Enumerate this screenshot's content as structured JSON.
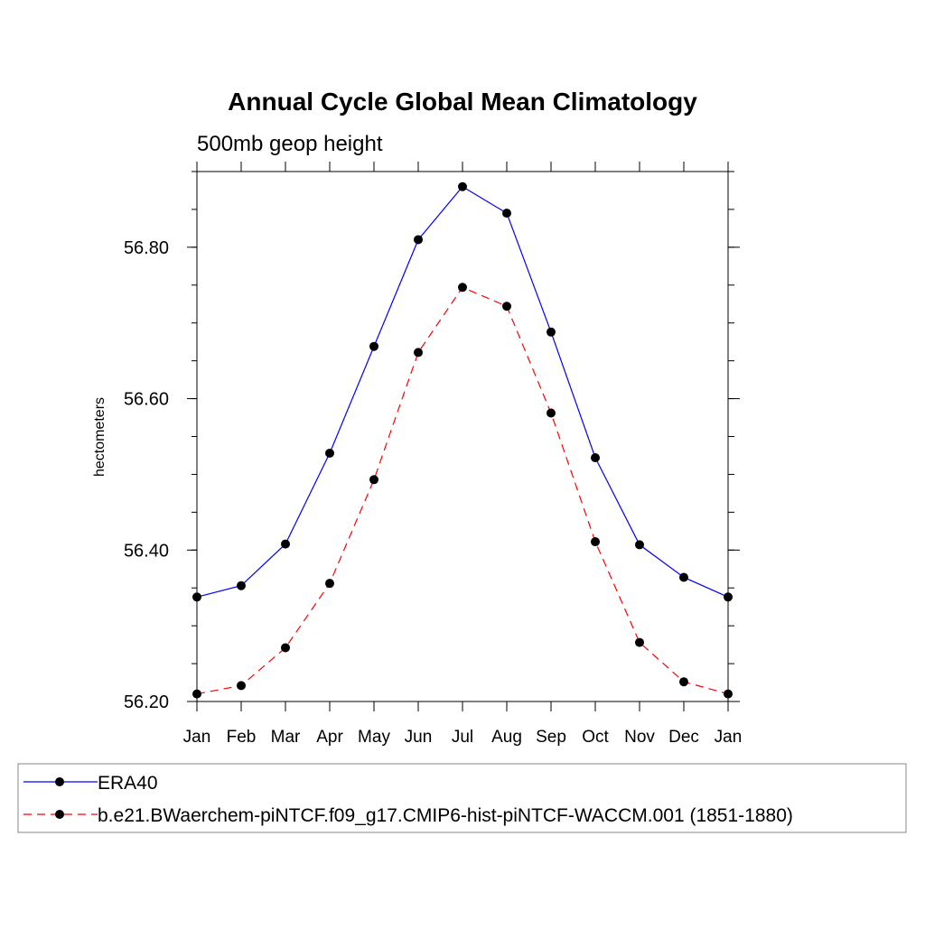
{
  "chart_data": {
    "type": "line",
    "title": "Annual Cycle Global Mean Climatology",
    "subtitle": "500mb geop height",
    "xlabel": "",
    "ylabel": "hectometers",
    "categories": [
      "Jan",
      "Feb",
      "Mar",
      "Apr",
      "May",
      "Jun",
      "Jul",
      "Aug",
      "Sep",
      "Oct",
      "Nov",
      "Dec",
      "Jan"
    ],
    "y_ticks": [
      "56.20",
      "56.40",
      "56.60",
      "56.80"
    ],
    "ylim": [
      56.2,
      56.9
    ],
    "grid": false,
    "legend_position": "bottom",
    "series": [
      {
        "name": "ERA40",
        "color": "#0000ff",
        "line_style": "solid",
        "marker": "filled-circle",
        "values": [
          56.338,
          56.353,
          56.408,
          56.528,
          56.669,
          56.81,
          56.88,
          56.845,
          56.688,
          56.522,
          56.407,
          56.364,
          56.338
        ]
      },
      {
        "name": "b.e21.BWaerchem-piNTCF.f09_g17.CMIP6-hist-piNTCF-WACCM.001 (1851-1880)",
        "color": "#ff0000",
        "line_style": "dashed",
        "marker": "filled-circle",
        "values": [
          56.21,
          56.221,
          56.271,
          56.356,
          56.493,
          56.661,
          56.747,
          56.722,
          56.581,
          56.411,
          56.278,
          56.226,
          56.21
        ]
      }
    ]
  }
}
